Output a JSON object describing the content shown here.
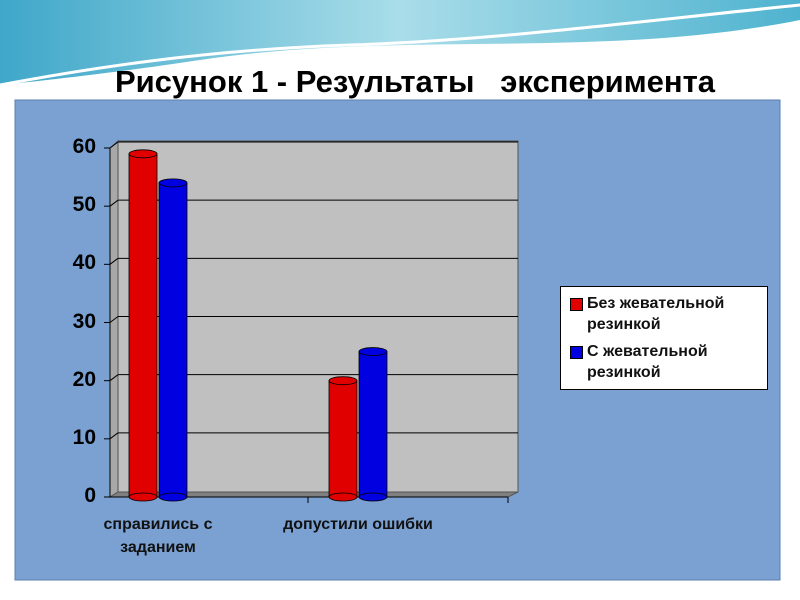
{
  "chart_data": {
    "type": "bar",
    "title": "Рисунок 1 - Результаты   эксперимента",
    "categories": [
      "справились с заданием",
      "допустили ошибки"
    ],
    "series": [
      {
        "name": "Без жевательной резинкой",
        "color": "#e00000",
        "values": [
          59,
          20
        ]
      },
      {
        "name": "С жевательной резинкой",
        "color": "#0000e0",
        "values": [
          54,
          25
        ]
      }
    ],
    "ylim": [
      0,
      60
    ],
    "yticks": [
      0,
      10,
      20,
      30,
      40,
      50,
      60
    ],
    "grid": true,
    "legend": "right"
  }
}
